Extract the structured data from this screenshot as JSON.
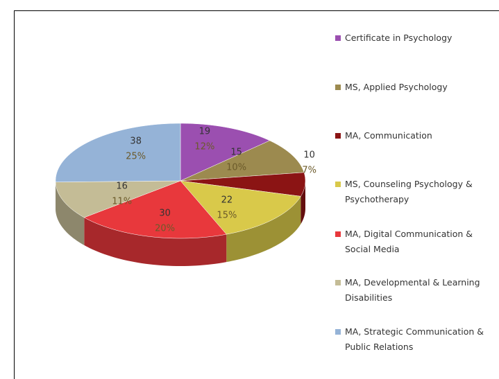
{
  "chart_data": {
    "type": "pie3d",
    "categories": [
      "Certificate in Psychology",
      "MS, Applied Psychology",
      "MA, Communication",
      "MS, Counseling Psychology & Psychotherapy",
      "MA, Digital Communication & Social Media",
      "MA, Developmental & Learning Disabilities",
      "MA, Strategic Communication & Public Relations"
    ],
    "values": [
      19,
      15,
      10,
      22,
      30,
      16,
      38
    ],
    "percent_labels": [
      "12%",
      "10%",
      "7%",
      "15%",
      "20%",
      "11%",
      "25%"
    ],
    "colors": [
      "#9b4fb0",
      "#9c8a4f",
      "#8b1414",
      "#d9c94a",
      "#e8383c",
      "#c4bc96",
      "#95b3d7"
    ],
    "legend": "right"
  }
}
